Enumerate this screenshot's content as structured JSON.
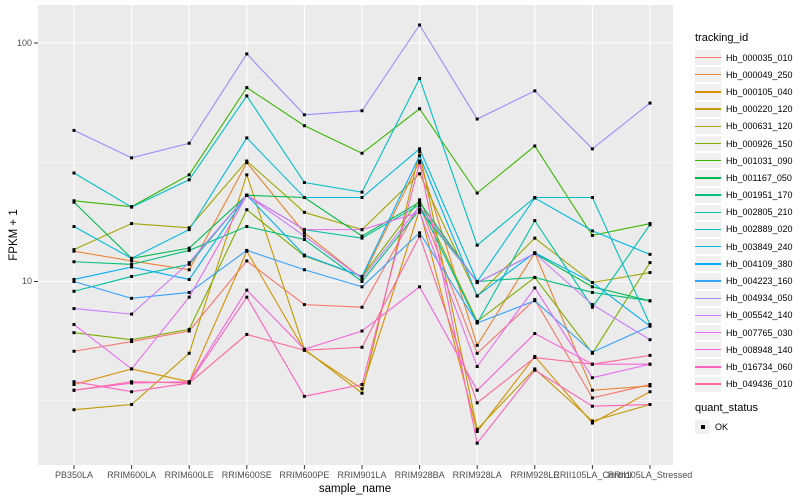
{
  "chart_data": {
    "type": "line",
    "title": "",
    "xlabel": "sample_name",
    "ylabel": "FPKM + 1",
    "y_scale": "log10",
    "ylim": [
      1.7,
      144
    ],
    "grid": true,
    "panel_bg": "#EBEBEB",
    "grid_color": "#FFFFFF",
    "point_color": "#000000",
    "axis_text_color": "#4D4D4D",
    "x_categories": [
      "PB350LA",
      "RRIM600LA",
      "RRIM600LE",
      "RRIM600SE",
      "RRIM600PE",
      "RRIM901LA",
      "RRIM928BA",
      "RRIM928LA",
      "RRIM928LE",
      "RRII105LA_Control",
      "RRII105LA_Stressed"
    ],
    "y_ticks": [
      {
        "label": "100",
        "value": 100
      },
      {
        "label": "10",
        "value": 10
      }
    ],
    "y_minor_values": [
      31.623,
      3.1623
    ],
    "legend": {
      "title": "tracking_id",
      "position": "right"
    },
    "legend2": {
      "title": "quant_status",
      "items": [
        {
          "label": "OK"
        }
      ]
    },
    "series": [
      {
        "name": "Hb_000035_010",
        "color": "#F8766D",
        "values": [
          5.1,
          5.6,
          6.2,
          12.2,
          8.0,
          7.8,
          21.0,
          5.0,
          8.4,
          3.25,
          3.7
        ]
      },
      {
        "name": "Hb_000049_250",
        "color": "#EA8331",
        "values": [
          13.4,
          12.2,
          11.2,
          31.5,
          16.0,
          10.3,
          32.0,
          5.4,
          13.2,
          3.5,
          3.65
        ]
      },
      {
        "name": "Hb_000105_040",
        "color": "#D89000",
        "values": [
          3.7,
          4.3,
          3.8,
          13.4,
          5.15,
          3.55,
          20.0,
          2.35,
          4.85,
          2.55,
          3.45
        ]
      },
      {
        "name": "Hb_000220_120",
        "color": "#C09B00",
        "values": [
          2.9,
          3.05,
          5.0,
          28.0,
          5.2,
          3.4,
          35.0,
          2.4,
          4.3,
          2.6,
          3.05
        ]
      },
      {
        "name": "Hb_000631_120",
        "color": "#A3A500",
        "values": [
          13.6,
          17.5,
          16.8,
          32.0,
          19.5,
          16.5,
          28.3,
          8.7,
          15.2,
          9.9,
          10.9
        ]
      },
      {
        "name": "Hb_000926_150",
        "color": "#7CAE00",
        "values": [
          6.1,
          5.7,
          6.3,
          20.0,
          12.8,
          10.5,
          22.0,
          6.8,
          10.4,
          5.0,
          12.0
        ]
      },
      {
        "name": "Hb_001031_090",
        "color": "#39B600",
        "values": [
          21.8,
          20.6,
          28.0,
          65.0,
          45.0,
          34.5,
          53.0,
          23.5,
          37.0,
          15.6,
          17.5
        ]
      },
      {
        "name": "Hb_001167_050",
        "color": "#00BB4E",
        "values": [
          21.5,
          12.5,
          13.8,
          23.0,
          22.5,
          15.5,
          21.5,
          9.9,
          13.1,
          9.5,
          8.3
        ]
      },
      {
        "name": "Hb_001951_170",
        "color": "#00BF7D",
        "values": [
          12.1,
          11.8,
          13.5,
          17.0,
          15.0,
          10.0,
          20.0,
          10.0,
          10.4,
          9.0,
          8.3
        ]
      },
      {
        "name": "Hb_002805_210",
        "color": "#00C1A3",
        "values": [
          9.1,
          10.5,
          11.8,
          23.0,
          16.5,
          15.2,
          21.0,
          6.7,
          18.0,
          7.8,
          17.3
        ]
      },
      {
        "name": "Hb_002889_020",
        "color": "#00BFC4",
        "values": [
          28.5,
          20.5,
          26.7,
          60.0,
          26.0,
          23.7,
          71.0,
          14.2,
          22.5,
          22.5,
          6.6
        ]
      },
      {
        "name": "Hb_003849_240",
        "color": "#00BAE0",
        "values": [
          17.0,
          12.5,
          16.5,
          40.0,
          22.5,
          22.5,
          36.0,
          10.0,
          22.4,
          16.3,
          13.0
        ]
      },
      {
        "name": "Hb_004109_380",
        "color": "#00B0F6",
        "values": [
          10.2,
          11.5,
          10.2,
          23.0,
          12.9,
          10.5,
          33.7,
          8.7,
          13.2,
          9.9,
          6.5
        ]
      },
      {
        "name": "Hb_004223_160",
        "color": "#35A2FF",
        "values": [
          10.0,
          8.5,
          9.0,
          13.5,
          11.2,
          9.5,
          16.0,
          6.7,
          8.3,
          5.05,
          6.5
        ]
      },
      {
        "name": "Hb_004934_050",
        "color": "#9590FF",
        "values": [
          43.0,
          33.0,
          38.0,
          90.0,
          50.0,
          52.0,
          119.0,
          48.0,
          63.0,
          36.0,
          56.0
        ]
      },
      {
        "name": "Hb_005542_140",
        "color": "#C77CFF",
        "values": [
          7.7,
          7.3,
          12.0,
          23.0,
          15.5,
          10.3,
          20.7,
          9.9,
          13.1,
          8.0,
          5.7
        ]
      },
      {
        "name": "Hb_007765_030",
        "color": "#E76BF3",
        "values": [
          6.6,
          4.3,
          8.6,
          23.0,
          16.5,
          16.5,
          19.5,
          4.4,
          9.4,
          3.95,
          4.5
        ]
      },
      {
        "name": "Hb_008948_140",
        "color": "#FA62DB",
        "values": [
          3.5,
          3.75,
          3.8,
          9.2,
          5.2,
          6.2,
          9.5,
          3.5,
          6.05,
          4.5,
          4.5
        ]
      },
      {
        "name": "Hb_016734_060",
        "color": "#FF62BC",
        "values": [
          3.8,
          3.45,
          3.75,
          8.6,
          3.3,
          3.7,
          31.5,
          2.1,
          4.25,
          3.0,
          3.05
        ]
      },
      {
        "name": "Hb_049436_010",
        "color": "#FF6A98",
        "values": [
          3.5,
          3.8,
          3.75,
          6.0,
          5.15,
          5.3,
          15.5,
          3.1,
          4.8,
          4.5,
          4.9
        ]
      }
    ]
  }
}
